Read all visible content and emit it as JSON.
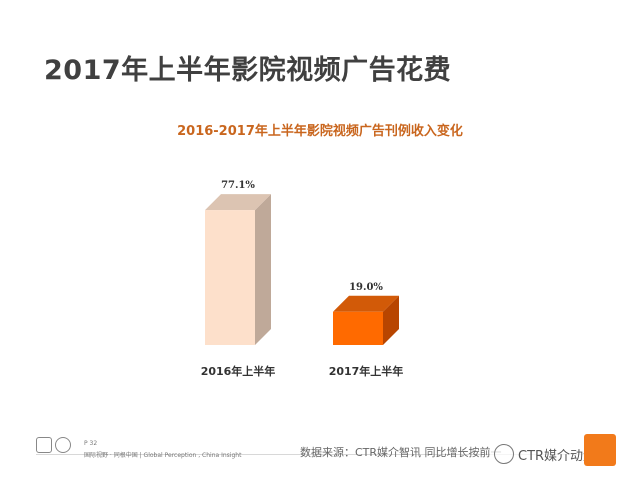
{
  "header": {
    "title": "2017年上半年影院视频广告花费"
  },
  "chart_data": {
    "type": "bar",
    "title": "2016-2017年上半年影院视频广告刊例收入变化",
    "categories": [
      "2016年上半年",
      "2017年上半年"
    ],
    "values": [
      77.1,
      19.0
    ],
    "value_labels": [
      "77.1%",
      "19.0%"
    ],
    "bar_colors": [
      {
        "front": "#fde0cb",
        "side": "#bfa999",
        "top": "#dcc4b2"
      },
      {
        "front": "#ff6a00",
        "side": "#b84500",
        "top": "#d25a08"
      }
    ],
    "xlabel": "",
    "ylabel": "",
    "ylim": [
      0,
      100
    ],
    "grid": false,
    "legend": "none"
  },
  "footer": {
    "page_number": "P 32",
    "slogan": "国际视野 · 同根中国 | Global Perception , China Insight",
    "source": "数据来源：CTR媒介智讯   同比增长按前一",
    "watermark": "CTR媒介动量"
  }
}
